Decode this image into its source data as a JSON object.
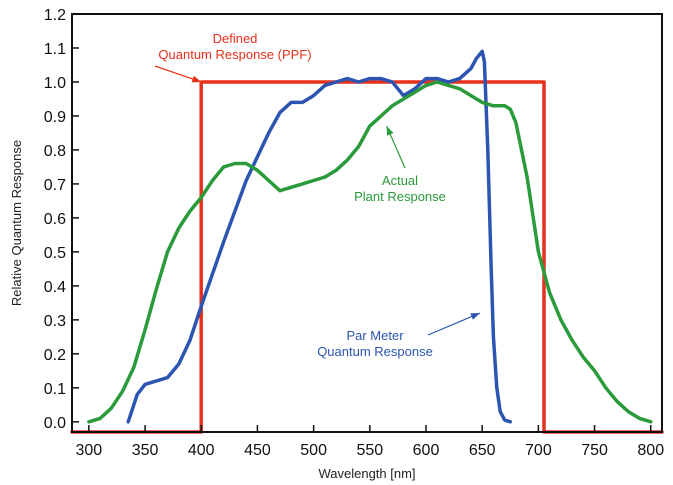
{
  "chart_data": {
    "type": "line",
    "xlabel": "Wavelength [nm]",
    "ylabel": "Relative Quantum Response",
    "xlim": [
      285,
      810
    ],
    "ylim": [
      -0.03,
      1.2
    ],
    "xticks": [
      "300",
      "350",
      "400",
      "450",
      "500",
      "550",
      "600",
      "650",
      "700",
      "750",
      "800"
    ],
    "yticks": [
      "0.0",
      "0.1",
      "0.2",
      "0.3",
      "0.4",
      "0.5",
      "0.6",
      "0.7",
      "0.8",
      "0.9",
      "1.0",
      "1.1",
      "1.2"
    ],
    "grid": false,
    "series": [
      {
        "label": "Defined Quantum Response (PPF)",
        "color": "#e8311c",
        "x": [
          285,
          400,
          400,
          705,
          705,
          810
        ],
        "y": [
          -0.03,
          -0.03,
          1.0,
          1.0,
          -0.03,
          -0.03
        ]
      },
      {
        "label": "Par Meter Quantum Response",
        "color": "#2c55b2",
        "x": [
          335,
          343,
          350,
          360,
          370,
          380,
          390,
          400,
          420,
          440,
          460,
          470,
          480,
          490,
          500,
          510,
          520,
          530,
          540,
          550,
          560,
          570,
          575,
          580,
          590,
          600,
          610,
          620,
          630,
          640,
          645,
          650,
          652,
          655,
          658,
          660,
          663,
          666,
          670,
          675
        ],
        "y": [
          0,
          0.08,
          0.11,
          0.12,
          0.13,
          0.17,
          0.24,
          0.34,
          0.53,
          0.71,
          0.85,
          0.91,
          0.94,
          0.94,
          0.96,
          0.99,
          1.0,
          1.01,
          1.0,
          1.01,
          1.01,
          1.0,
          0.98,
          0.96,
          0.98,
          1.01,
          1.01,
          1.0,
          1.01,
          1.04,
          1.07,
          1.09,
          1.06,
          0.8,
          0.45,
          0.25,
          0.1,
          0.03,
          0.005,
          0
        ]
      },
      {
        "label": "Actual Plant Response",
        "color": "#2a9b3b",
        "x": [
          300,
          310,
          320,
          330,
          340,
          350,
          360,
          370,
          380,
          390,
          400,
          410,
          420,
          430,
          440,
          450,
          460,
          470,
          480,
          490,
          500,
          510,
          520,
          530,
          540,
          550,
          560,
          570,
          580,
          590,
          600,
          610,
          620,
          630,
          640,
          650,
          660,
          670,
          675,
          680,
          690,
          700,
          710,
          720,
          730,
          740,
          750,
          760,
          770,
          780,
          790,
          800
        ],
        "y": [
          0,
          0.01,
          0.04,
          0.09,
          0.16,
          0.27,
          0.39,
          0.5,
          0.57,
          0.62,
          0.66,
          0.71,
          0.75,
          0.76,
          0.76,
          0.74,
          0.71,
          0.68,
          0.69,
          0.7,
          0.71,
          0.72,
          0.74,
          0.77,
          0.81,
          0.87,
          0.9,
          0.93,
          0.95,
          0.97,
          0.99,
          1.0,
          0.99,
          0.98,
          0.96,
          0.94,
          0.93,
          0.93,
          0.92,
          0.88,
          0.72,
          0.5,
          0.38,
          0.3,
          0.24,
          0.19,
          0.15,
          0.1,
          0.06,
          0.03,
          0.01,
          0
        ]
      }
    ],
    "annotations": [
      {
        "lines": [
          "Defined",
          "Quantum Response (PPF)"
        ],
        "color": "#e8311c",
        "arrow_to": [
          400,
          1.0
        ]
      },
      {
        "lines": [
          "Actual",
          "Plant Response"
        ],
        "color": "#2a9b3b",
        "arrow_to": [
          565,
          0.87
        ]
      },
      {
        "lines": [
          "Par Meter",
          "Quantum Response"
        ],
        "color": "#2c55b2",
        "arrow_to": [
          648,
          0.32
        ]
      }
    ]
  }
}
